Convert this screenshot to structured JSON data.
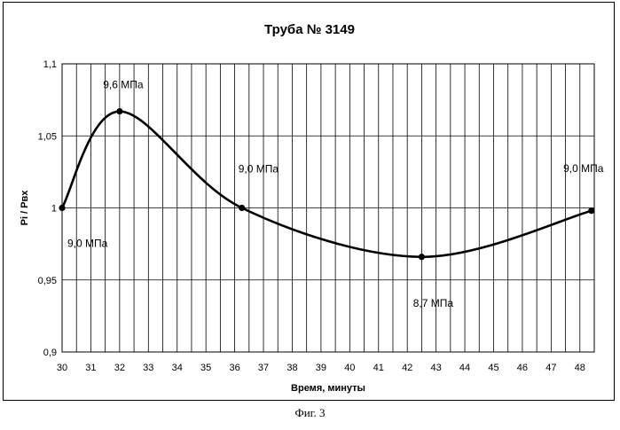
{
  "chart_data": {
    "type": "line",
    "title": "Труба № 3149",
    "xlabel": "Время, минуты",
    "ylabel": "Pi / Рвх",
    "xlim": [
      30,
      48.5
    ],
    "ylim": [
      0.9,
      1.1
    ],
    "x_ticks": [
      "30",
      "31",
      "32",
      "33",
      "34",
      "35",
      "36",
      "37",
      "38",
      "39",
      "40",
      "41",
      "42",
      "43",
      "44",
      "45",
      "46",
      "47",
      "48"
    ],
    "y_ticks": [
      {
        "value": 0.9,
        "label": "0,9"
      },
      {
        "value": 0.95,
        "label": "0,95"
      },
      {
        "value": 1.0,
        "label": "1"
      },
      {
        "value": 1.05,
        "label": "1,05"
      },
      {
        "value": 1.1,
        "label": "1,1"
      }
    ],
    "x_minor_step": 0.5,
    "grid": true,
    "series": [
      {
        "name": "Pi / Рвх",
        "color": "#000000",
        "points": [
          {
            "x": 30.0,
            "y": 1.0,
            "label": "9,0 МПа",
            "label_pos": "below-right"
          },
          {
            "x": 32.0,
            "y": 1.067,
            "label": "9,6 МПа",
            "label_pos": "above"
          },
          {
            "x": 36.25,
            "y": 1.0,
            "label": "9,0 МПа",
            "label_pos": "above-right"
          },
          {
            "x": 42.5,
            "y": 0.966,
            "label": "8,7 МПа",
            "label_pos": "below"
          },
          {
            "x": 48.4,
            "y": 0.998,
            "label": "9,0 МПа",
            "label_pos": "above-left"
          }
        ]
      }
    ]
  },
  "caption": "Фиг. 3"
}
